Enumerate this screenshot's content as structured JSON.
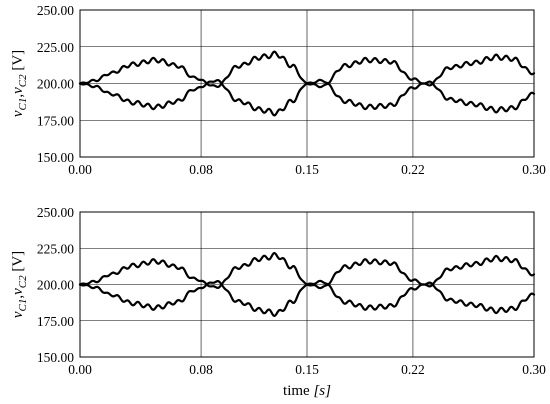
{
  "chart_data": [
    {
      "type": "line",
      "title": "",
      "xlabel": "",
      "ylabel": "v_C1, v_C2 [V]",
      "ylabel_parts": {
        "v": "v",
        "sub1": "C1",
        "sep": ",",
        "v2": "v",
        "sub2": "C2",
        "unit": "[V]"
      },
      "xlim": [
        0,
        0.3
      ],
      "ylim": [
        150,
        250
      ],
      "xticks": [
        "0.00",
        "0.08",
        "0.15",
        "0.22",
        "0.30"
      ],
      "yticks": [
        "150.00",
        "175.00",
        "200.00",
        "225.00",
        "250.00"
      ],
      "grid": true,
      "series": [
        {
          "x": [
            0,
            0.01,
            0.02,
            0.035,
            0.05,
            0.065,
            0.075,
            0.09,
            0.105,
            0.12,
            0.13,
            0.14,
            0.15,
            0.16,
            0.175,
            0.19,
            0.205,
            0.22,
            0.23,
            0.245,
            0.26,
            0.275,
            0.285,
            0.3
          ],
          "y": [
            200,
            202,
            207,
            213,
            216,
            212,
            204,
            198,
            212,
            218,
            220,
            212,
            200,
            198,
            212,
            216,
            215,
            203,
            199,
            211,
            214,
            218,
            217,
            207
          ]
        },
        {
          "x": [
            0,
            0.01,
            0.02,
            0.035,
            0.05,
            0.065,
            0.075,
            0.09,
            0.105,
            0.12,
            0.13,
            0.14,
            0.15,
            0.16,
            0.175,
            0.19,
            0.205,
            0.22,
            0.23,
            0.245,
            0.26,
            0.275,
            0.285,
            0.3
          ],
          "y": [
            200,
            198,
            193,
            187,
            184,
            188,
            196,
            202,
            188,
            182,
            180,
            188,
            200,
            202,
            188,
            184,
            185,
            197,
            201,
            189,
            186,
            182,
            183,
            193
          ]
        }
      ]
    },
    {
      "type": "line",
      "title": "",
      "xlabel": "time [s]",
      "xlabel_parts": {
        "main": "time",
        "unit": "[s]"
      },
      "ylabel": "v_C1, v_C2 [V]",
      "ylabel_parts": {
        "v": "v",
        "sub1": "C1",
        "sep": ",",
        "v2": "v",
        "sub2": "C2",
        "unit": "[V]"
      },
      "xlim": [
        0,
        0.3
      ],
      "ylim": [
        150,
        250
      ],
      "xticks": [
        "0.00",
        "0.08",
        "0.15",
        "0.22",
        "0.30"
      ],
      "yticks": [
        "150.00",
        "175.00",
        "200.00",
        "225.00",
        "250.00"
      ],
      "grid": true,
      "series": [
        {
          "x": [
            0,
            0.01,
            0.02,
            0.035,
            0.05,
            0.065,
            0.075,
            0.09,
            0.105,
            0.12,
            0.13,
            0.14,
            0.15,
            0.16,
            0.175,
            0.19,
            0.205,
            0.22,
            0.23,
            0.245,
            0.26,
            0.275,
            0.285,
            0.3
          ],
          "y": [
            200,
            202,
            207,
            213,
            216,
            212,
            204,
            198,
            212,
            218,
            220,
            212,
            200,
            198,
            212,
            216,
            215,
            203,
            199,
            211,
            214,
            218,
            217,
            207
          ]
        },
        {
          "x": [
            0,
            0.01,
            0.02,
            0.035,
            0.05,
            0.065,
            0.075,
            0.09,
            0.105,
            0.12,
            0.13,
            0.14,
            0.15,
            0.16,
            0.175,
            0.19,
            0.205,
            0.22,
            0.23,
            0.245,
            0.26,
            0.275,
            0.285,
            0.3
          ],
          "y": [
            200,
            198,
            193,
            187,
            184,
            188,
            196,
            202,
            188,
            182,
            180,
            188,
            200,
            202,
            188,
            184,
            185,
            197,
            201,
            189,
            186,
            182,
            183,
            193
          ]
        }
      ]
    }
  ]
}
